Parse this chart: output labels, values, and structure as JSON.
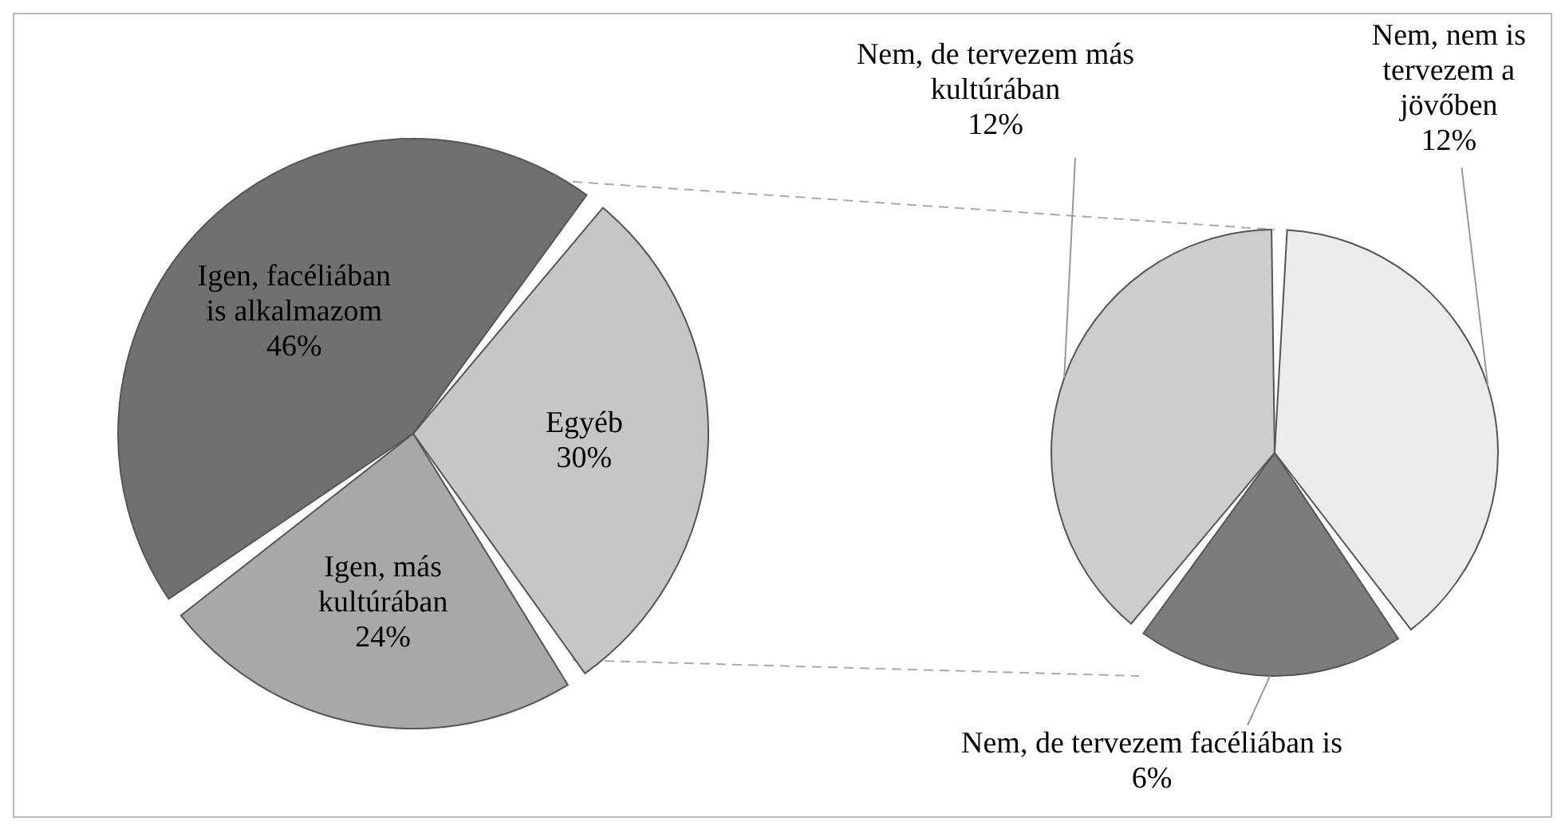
{
  "chart_data": [
    {
      "type": "pie",
      "categories": [
        "Igen, facéliában is alkalmazom",
        "Igen, más kultúrában",
        "Egyéb"
      ],
      "values": [
        46,
        24,
        30
      ],
      "value_labels": [
        "46%",
        "24%",
        "30%"
      ],
      "colors": [
        "#707070",
        "#a8a8a8",
        "#c6c6c6"
      ]
    },
    {
      "type": "pie",
      "categories": [
        "Nem, de tervezem facéliában is",
        "Nem, nem is tervezem a jövőben",
        "Nem, de tervezem más kultúrában"
      ],
      "values": [
        6,
        12,
        12
      ],
      "value_labels": [
        "6%",
        "12%",
        "12%"
      ],
      "colors": [
        "#7c7c7c",
        "#ebebeb",
        "#cdcdcd"
      ]
    }
  ]
}
